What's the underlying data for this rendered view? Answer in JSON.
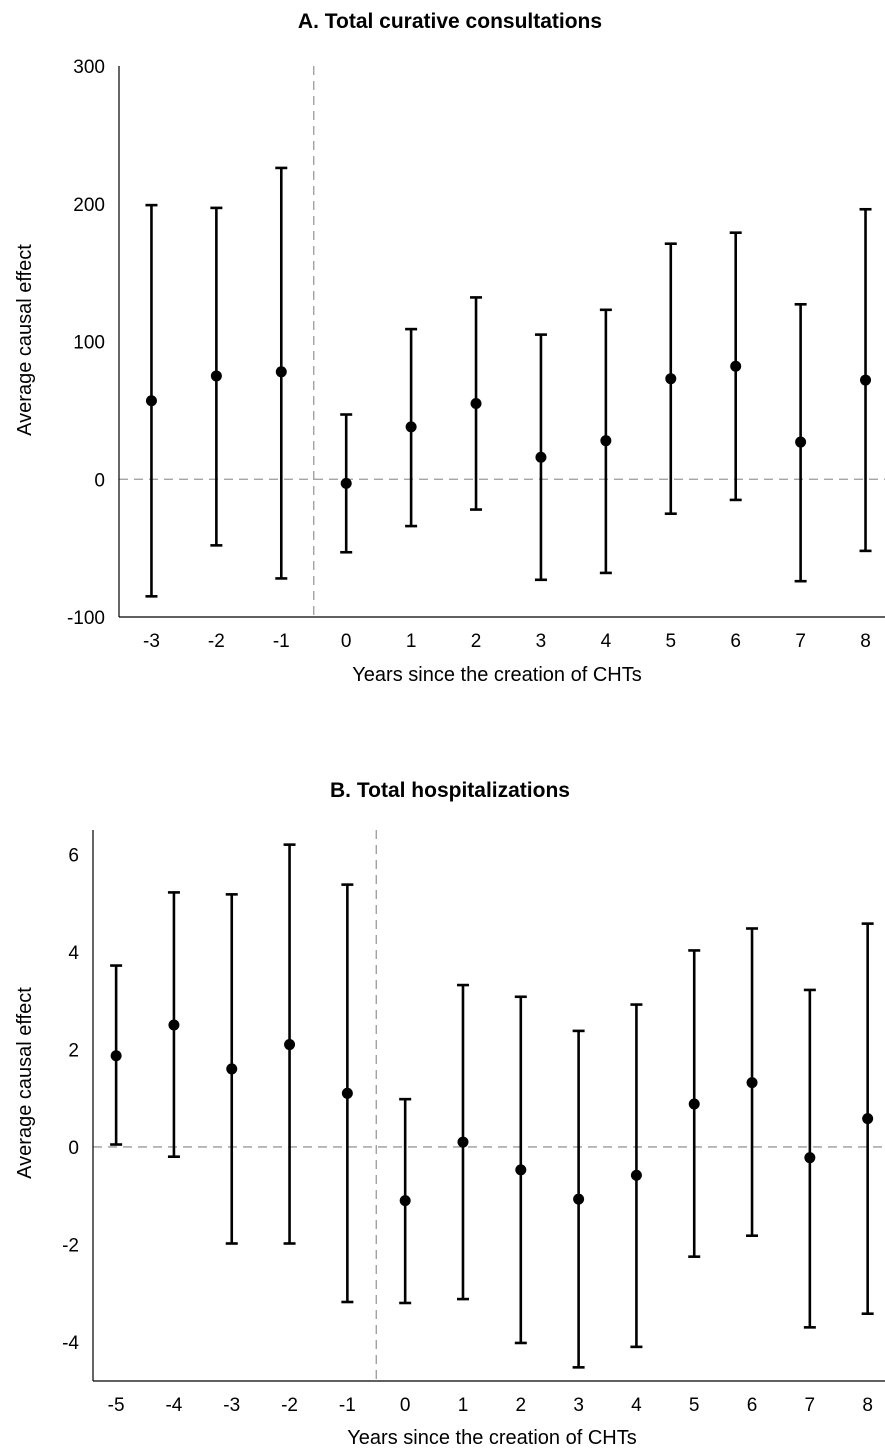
{
  "chart_data": [
    {
      "type": "scatter",
      "title": "A. Total curative consultations",
      "xlabel": "Years since the creation of CHTs",
      "ylabel": "Average causal effect",
      "ylim": [
        -100,
        300
      ],
      "xlim": [
        -3.5,
        8.3
      ],
      "yticks": [
        "-100",
        "0",
        "100",
        "200",
        "300"
      ],
      "xticks": [
        "-3",
        "-2",
        "-1",
        "0",
        "1",
        "2",
        "3",
        "4",
        "5",
        "6",
        "7",
        "8"
      ],
      "x": [
        -3,
        -2,
        -1,
        0,
        1,
        2,
        3,
        4,
        5,
        6,
        7,
        8
      ],
      "estimate": [
        57,
        75,
        78,
        -3,
        38,
        55,
        16,
        28,
        73,
        82,
        27,
        72
      ],
      "ci_low": [
        -85,
        -48,
        -72,
        -53,
        -34,
        -22,
        -73,
        -68,
        -25,
        -15,
        -74,
        -52
      ],
      "ci_high": [
        199,
        197,
        226,
        47,
        109,
        132,
        105,
        123,
        171,
        179,
        127,
        196
      ],
      "reference_lines": {
        "y": 0,
        "x": -0.5
      },
      "grid": false
    },
    {
      "type": "scatter",
      "title": "B. Total hospitalizations",
      "xlabel": "Years since the creation of CHTs",
      "ylabel": "Average causal effect",
      "ylim": [
        -4.8,
        6.5
      ],
      "xlim": [
        -5.4,
        8.3
      ],
      "yticks": [
        "-4",
        "-2",
        "0",
        "2",
        "4",
        "6"
      ],
      "xticks": [
        "-5",
        "-4",
        "-3",
        "-2",
        "-1",
        "0",
        "1",
        "2",
        "3",
        "4",
        "5",
        "6",
        "7",
        "8"
      ],
      "x": [
        -5,
        -4,
        -3,
        -2,
        -1,
        0,
        1,
        2,
        3,
        4,
        5,
        6,
        7,
        8
      ],
      "estimate": [
        1.87,
        2.5,
        1.6,
        2.1,
        1.1,
        -1.1,
        0.1,
        -0.47,
        -1.07,
        -0.58,
        0.88,
        1.32,
        -0.22,
        0.58
      ],
      "ci_low": [
        0.05,
        -0.2,
        -1.98,
        -1.98,
        -3.18,
        -3.2,
        -3.12,
        -4.02,
        -4.52,
        -4.1,
        -2.25,
        -1.82,
        -3.7,
        -3.42
      ],
      "ci_high": [
        3.72,
        5.22,
        5.18,
        6.2,
        5.38,
        0.98,
        3.32,
        3.08,
        2.38,
        2.92,
        4.03,
        4.48,
        3.22,
        4.58
      ],
      "reference_lines": {
        "y": 0,
        "x": -0.5
      },
      "grid": false
    }
  ]
}
